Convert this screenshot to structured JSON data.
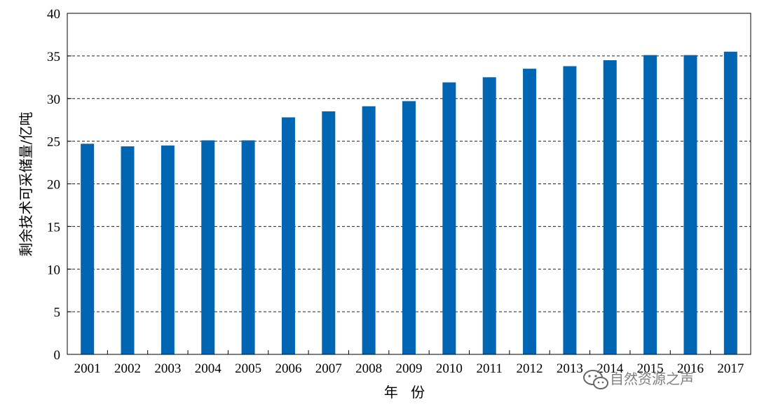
{
  "chart_data": {
    "type": "bar",
    "title": "",
    "xlabel": "年 份",
    "ylabel": "剩余技术可采储量/亿吨",
    "categories": [
      "2001",
      "2002",
      "2003",
      "2004",
      "2005",
      "2006",
      "2007",
      "2008",
      "2009",
      "2010",
      "2011",
      "2012",
      "2013",
      "2014",
      "2015",
      "2016",
      "2017"
    ],
    "values": [
      24.7,
      24.4,
      24.5,
      25.1,
      25.1,
      27.8,
      28.5,
      29.1,
      29.7,
      31.9,
      32.5,
      33.5,
      33.8,
      34.5,
      35.1,
      35.1,
      35.5
    ],
    "ylim": [
      0,
      40
    ],
    "yticks": [
      0,
      5,
      10,
      15,
      20,
      25,
      30,
      35,
      40
    ],
    "grid": "horizontal-dashed",
    "legend": "none",
    "bar_color": "#0066b3"
  },
  "watermark": {
    "text": "自然资源之声",
    "icon": "wechat-icon"
  }
}
